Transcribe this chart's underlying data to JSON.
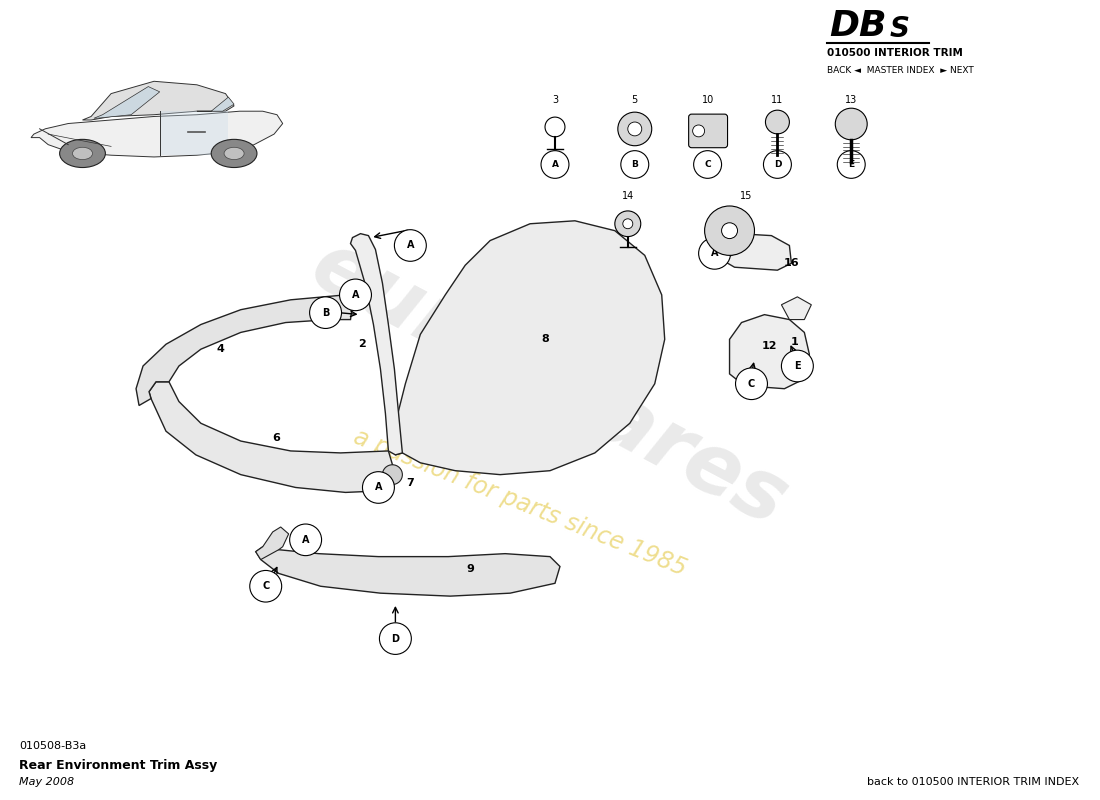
{
  "title_dbs": "DBS",
  "title_section": "010500 INTERIOR TRIM",
  "nav_text": "BACK ◄  MASTER INDEX  ► NEXT",
  "bottom_left_code": "010508-B3a",
  "bottom_left_desc": "Rear Environment Trim Assy",
  "bottom_left_date": "May 2008",
  "bottom_right_text": "back to 010500 INTERIOR TRIM INDEX",
  "bg_color": "#ffffff",
  "part_fill": "#eeeeee",
  "part_edge": "#222222"
}
